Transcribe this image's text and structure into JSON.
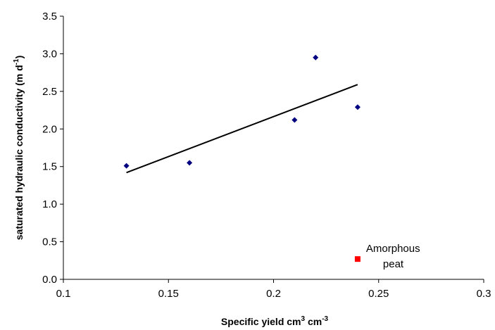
{
  "chart_data": {
    "type": "scatter",
    "title": "",
    "xlabel": {
      "main": "Specific yield cm",
      "sup1": "3",
      "mid": " cm",
      "sup2": "-3"
    },
    "ylabel": {
      "main": "saturated hydraulic conductivity (m d",
      "sup": "-1",
      "end": ")"
    },
    "xlim": [
      0.1,
      0.3
    ],
    "ylim": [
      0.0,
      3.5
    ],
    "x_ticks": [
      "0.1",
      "0.15",
      "0.2",
      "0.25",
      "0.3"
    ],
    "y_ticks": [
      "0.0",
      "0.5",
      "1.0",
      "1.5",
      "2.0",
      "2.5",
      "3.0",
      "3.5"
    ],
    "grid": false,
    "series": [
      {
        "marker": "diamond",
        "color": "#000080",
        "points": [
          {
            "x": 0.13,
            "y": 1.51
          },
          {
            "x": 0.16,
            "y": 1.55
          },
          {
            "x": 0.21,
            "y": 2.12
          },
          {
            "x": 0.22,
            "y": 2.95
          },
          {
            "x": 0.24,
            "y": 2.29
          }
        ]
      },
      {
        "marker": "square",
        "color": "#ff0000",
        "points": [
          {
            "x": 0.24,
            "y": 0.27
          }
        ]
      }
    ],
    "trendline": {
      "color": "#000000",
      "start": {
        "x": 0.13,
        "y": 1.42
      },
      "end": {
        "x": 0.24,
        "y": 2.59
      }
    },
    "annotations": [
      {
        "lines": [
          "Amorphous",
          "peat"
        ],
        "x": 0.24,
        "y": 0.27
      }
    ]
  }
}
